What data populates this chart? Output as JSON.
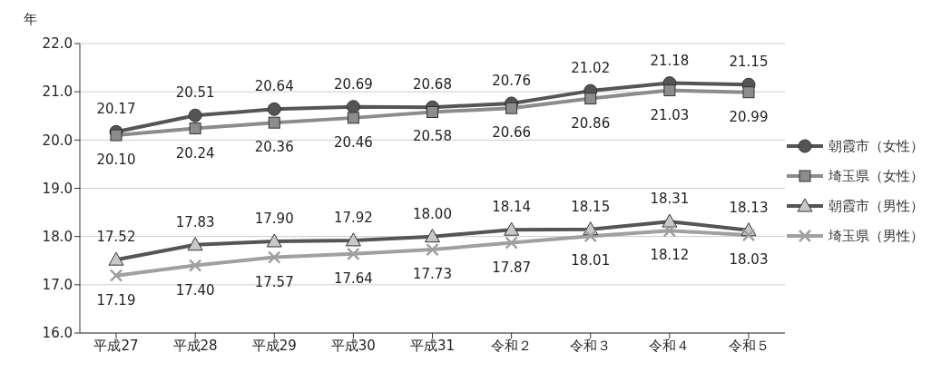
{
  "chart_data": {
    "type": "line",
    "ylabel": "年",
    "categories": [
      "平成27",
      "平成28",
      "平成29",
      "平成30",
      "平成31",
      "令和２",
      "令和３",
      "令和４",
      "令和５"
    ],
    "series": [
      {
        "name": "朝霞市（女性）",
        "color": "#555555",
        "marker": "circle",
        "values": [
          20.17,
          20.51,
          20.64,
          20.69,
          20.68,
          20.76,
          21.02,
          21.18,
          21.15
        ],
        "value_labels": [
          "20.17",
          "20.51",
          "20.64",
          "20.69",
          "20.68",
          "20.76",
          "21.02",
          "21.18",
          "21.15"
        ]
      },
      {
        "name": "埼玉県（女性）",
        "color": "#8c8c8c",
        "marker": "square",
        "values": [
          20.1,
          20.24,
          20.36,
          20.46,
          20.58,
          20.66,
          20.86,
          21.03,
          20.99
        ],
        "value_labels": [
          "20.10",
          "20.24",
          "20.36",
          "20.46",
          "20.58",
          "20.66",
          "20.86",
          "21.03",
          "20.99"
        ]
      },
      {
        "name": "朝霞市（男性）",
        "color": "#555555",
        "marker": "triangle",
        "values": [
          17.52,
          17.83,
          17.9,
          17.92,
          18.0,
          18.14,
          18.15,
          18.31,
          18.13
        ],
        "value_labels": [
          "17.52",
          "17.83",
          "17.90",
          "17.92",
          "18.00",
          "18.14",
          "18.15",
          "18.31",
          "18.13"
        ]
      },
      {
        "name": "埼玉県（男性）",
        "color": "#a0a0a0",
        "marker": "cross",
        "values": [
          17.19,
          17.4,
          17.57,
          17.64,
          17.73,
          17.87,
          18.01,
          18.12,
          18.03
        ],
        "value_labels": [
          "17.19",
          "17.40",
          "17.57",
          "17.64",
          "17.73",
          "17.87",
          "18.01",
          "18.12",
          "18.03"
        ]
      }
    ],
    "ylim": [
      16,
      22
    ],
    "yticks": [
      {
        "value": 16,
        "label": "16.0"
      },
      {
        "value": 17,
        "label": "17.0"
      },
      {
        "value": 18,
        "label": "18.0"
      },
      {
        "value": 19,
        "label": "19.0"
      },
      {
        "value": 20,
        "label": "20.0"
      },
      {
        "value": 21,
        "label": "21.0"
      },
      {
        "value": 22,
        "label": "22.0"
      }
    ],
    "grid": "y",
    "legend": "right",
    "line_style": "solid"
  }
}
